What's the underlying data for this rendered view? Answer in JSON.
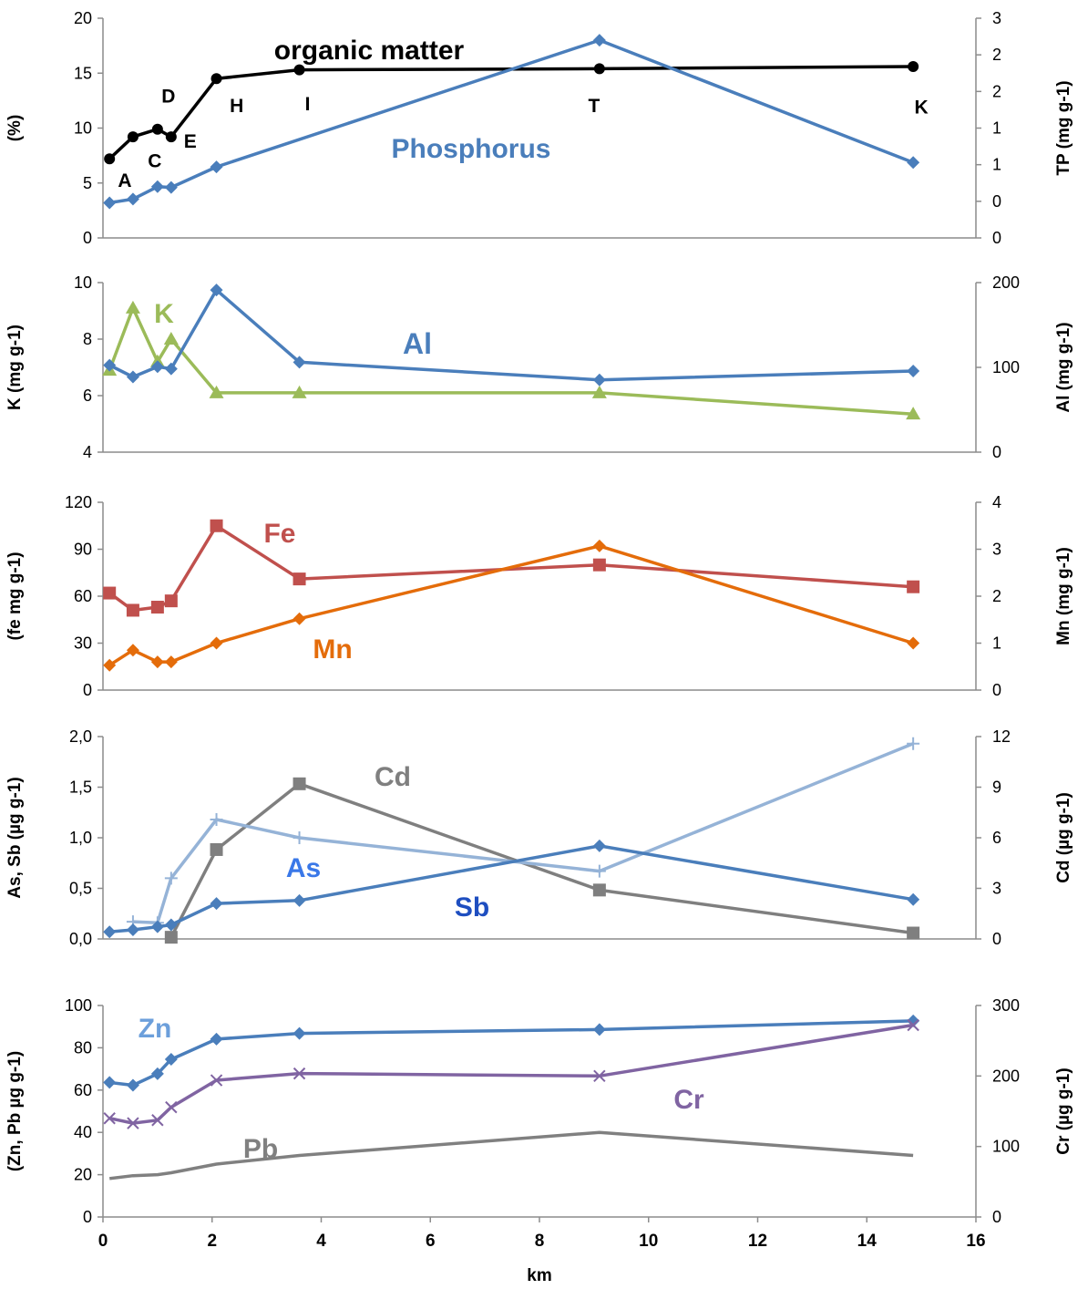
{
  "chart_data": [
    {
      "type": "line",
      "ylabel_left": "(%)",
      "ylabel_right": "TP (mg g-1)",
      "ylim_left": [
        0,
        20
      ],
      "yticks_left": [
        "0",
        "5",
        "10",
        "15",
        "20"
      ],
      "ylim_right": [
        0,
        3
      ],
      "yticks_right": [
        "0",
        "0",
        "1",
        "1",
        "2",
        "2",
        "3"
      ],
      "series": [
        {
          "name": "organic matter",
          "axis": "left",
          "color": "#000000",
          "marker": "circle",
          "x": [
            0.12,
            0.55,
            1.0,
            1.25,
            2.08,
            3.6,
            9.1,
            14.85
          ],
          "y": [
            7.2,
            9.2,
            9.9,
            9.2,
            14.5,
            15.3,
            15.4,
            15.6
          ]
        },
        {
          "name": "Phosphorus",
          "axis": "right",
          "color": "#4A7EBB",
          "marker": "diamond",
          "x": [
            0.12,
            0.55,
            1.0,
            1.25,
            2.08,
            9.1,
            14.85
          ],
          "y": [
            0.48,
            0.53,
            0.7,
            0.69,
            0.97,
            2.7,
            1.03
          ]
        }
      ],
      "point_labels": [
        {
          "text": "A",
          "x": 0.4,
          "y": 5.3
        },
        {
          "text": "C",
          "x": 0.95,
          "y": 7.1
        },
        {
          "text": "D",
          "x": 1.2,
          "y": 13.0
        },
        {
          "text": "E",
          "x": 1.6,
          "y": 8.9
        },
        {
          "text": "H",
          "x": 2.45,
          "y": 12.1
        },
        {
          "text": "I",
          "x": 3.75,
          "y": 12.3
        },
        {
          "text": "T",
          "x": 9.0,
          "y": 12.1
        },
        {
          "text": "K",
          "x": 15.0,
          "y": 12.0
        }
      ]
    },
    {
      "type": "line",
      "ylabel_left": "K (mg g-1)",
      "ylabel_right": "Al (mg g-1)",
      "ylim_left": [
        4,
        10
      ],
      "yticks_left": [
        "4",
        "6",
        "8",
        "10"
      ],
      "ylim_right": [
        0,
        230
      ],
      "yticks_right": [
        "0",
        "100",
        "200"
      ],
      "series": [
        {
          "name": "K",
          "axis": "left",
          "color": "#9BBB59",
          "marker": "triangle",
          "x": [
            0.12,
            0.55,
            1.0,
            1.25,
            2.08,
            3.6,
            9.1,
            14.85
          ],
          "y": [
            6.9,
            9.1,
            7.2,
            8.0,
            6.1,
            6.1,
            6.1,
            5.35
          ]
        },
        {
          "name": "Al",
          "axis": "right",
          "color": "#4A7EBB",
          "marker": "diamond",
          "x": [
            0.12,
            0.55,
            1.0,
            1.25,
            2.08,
            3.6,
            9.1,
            14.85
          ],
          "y": [
            118,
            102,
            116,
            113,
            220,
            122,
            98,
            110
          ]
        }
      ]
    },
    {
      "type": "line",
      "ylabel_left": "(fe mg g-1)",
      "ylabel_right": "Mn (mg g-1)",
      "ylim_left": [
        0,
        120
      ],
      "yticks_left": [
        "0",
        "30",
        "60",
        "90",
        "120"
      ],
      "ylim_right": [
        0,
        4
      ],
      "yticks_right": [
        "0",
        "1",
        "2",
        "3",
        "4"
      ],
      "series": [
        {
          "name": "Fe",
          "axis": "left",
          "color": "#C0504D",
          "marker": "square",
          "x": [
            0.12,
            0.55,
            1.0,
            1.25,
            2.08,
            3.6,
            9.1,
            14.85
          ],
          "y": [
            62,
            51,
            53,
            57,
            105,
            71,
            80,
            66
          ]
        },
        {
          "name": "Mn",
          "axis": "right",
          "color": "#E46C0A",
          "marker": "diamond",
          "x": [
            0.12,
            0.55,
            1.0,
            1.25,
            2.08,
            3.6,
            9.1,
            14.85
          ],
          "y": [
            0.53,
            0.85,
            0.6,
            0.6,
            1.0,
            1.52,
            3.07,
            1.0
          ]
        }
      ]
    },
    {
      "type": "line",
      "ylabel_left": "As, Sb (µg g-1)",
      "ylabel_right": "Cd (µg g-1)",
      "ylim_left": [
        0,
        2
      ],
      "yticks_left": [
        "0,0",
        "0,5",
        "1,0",
        "1,5",
        "2,0"
      ],
      "ylim_right": [
        0,
        12
      ],
      "yticks_right": [
        "0",
        "3",
        "6",
        "9",
        "12"
      ],
      "series": [
        {
          "name": "Cd",
          "axis": "right",
          "color": "#7F7F7F",
          "marker": "square",
          "x": [
            1.25,
            2.08,
            3.6,
            9.1,
            14.85
          ],
          "y": [
            0.1,
            5.3,
            9.2,
            2.9,
            0.35
          ]
        },
        {
          "name": "As",
          "axis": "left",
          "color": "#95B3D7",
          "marker": "plus",
          "x": [
            0.55,
            1.0,
            1.25,
            2.08,
            3.6,
            9.1,
            14.85
          ],
          "y": [
            0.17,
            0.16,
            0.6,
            1.18,
            1.0,
            0.67,
            1.93
          ]
        },
        {
          "name": "Sb",
          "axis": "left",
          "color": "#4A7EBB",
          "marker": "diamond",
          "x": [
            0.12,
            0.55,
            1.0,
            1.25,
            2.08,
            3.6,
            9.1,
            14.85
          ],
          "y": [
            0.07,
            0.09,
            0.12,
            0.14,
            0.35,
            0.38,
            0.92,
            0.39
          ]
        }
      ]
    },
    {
      "type": "line",
      "ylabel_left": "(Zn, Pb µg g-1)",
      "ylabel_right": "Cr (µg g-1)",
      "xlabel": "km",
      "xlim": [
        0,
        16
      ],
      "xticks": [
        "0",
        "2",
        "4",
        "6",
        "8",
        "10",
        "12",
        "14",
        "16"
      ],
      "ylim_left": [
        0,
        110
      ],
      "yticks_left": [
        "0",
        "20",
        "40",
        "60",
        "80",
        "100"
      ],
      "ylim_right": [
        0,
        345
      ],
      "yticks_right": [
        "0",
        "100",
        "200",
        "300"
      ],
      "series": [
        {
          "name": "Zn",
          "axis": "left",
          "color": "#4A7EBB",
          "marker": "diamond",
          "x": [
            0.12,
            0.55,
            1.0,
            1.25,
            2.08,
            3.6,
            9.1,
            14.85
          ],
          "y": [
            70,
            68.5,
            74.5,
            82,
            92.5,
            95.5,
            97.5,
            102
          ]
        },
        {
          "name": "Cr",
          "axis": "right",
          "color": "#8064A2",
          "marker": "cross",
          "x": [
            0.12,
            0.55,
            1.0,
            1.25,
            2.08,
            3.6,
            9.1,
            14.85
          ],
          "y": [
            161,
            153,
            158,
            179,
            223,
            234,
            230,
            313
          ]
        },
        {
          "name": "Pb",
          "axis": "left",
          "color": "#808080",
          "marker": "none",
          "x": [
            0.12,
            0.55,
            1.0,
            1.25,
            2.08,
            3.6,
            9.1,
            14.85
          ],
          "y": [
            20,
            21.5,
            22,
            23,
            27.5,
            32,
            44,
            32
          ]
        }
      ]
    }
  ]
}
